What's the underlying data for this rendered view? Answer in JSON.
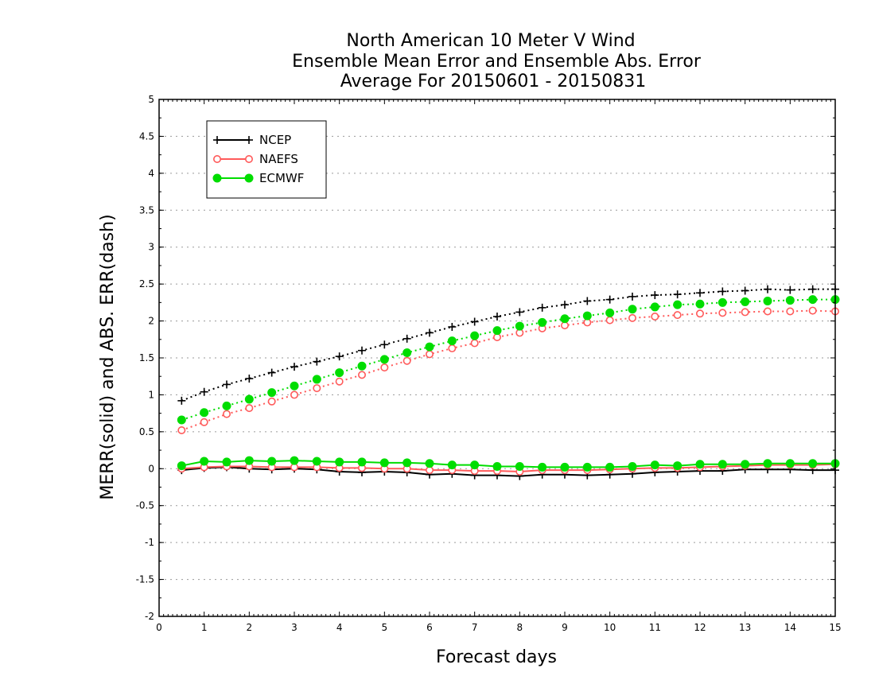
{
  "chart_data": {
    "type": "line",
    "title": [
      "North American 10 Meter V Wind",
      "Ensemble Mean Error and Ensemble Abs. Error",
      "Average For 20150601 - 20150831"
    ],
    "xlabel": "Forecast days",
    "ylabel": "MERR(solid) and ABS. ERR(dash)",
    "xlim": [
      0,
      15
    ],
    "ylim": [
      -2,
      5
    ],
    "x_ticks": [
      0,
      1,
      2,
      3,
      4,
      5,
      6,
      7,
      8,
      9,
      10,
      11,
      12,
      13,
      14,
      15
    ],
    "y_ticks": [
      -2,
      -1.5,
      -1,
      -0.5,
      0,
      0.5,
      1,
      1.5,
      2,
      2.5,
      3,
      3.5,
      4,
      4.5,
      5
    ],
    "y_tick_labels": [
      "-2",
      "-1.5",
      "-1",
      "-0.5",
      "0",
      "0.5",
      "1",
      "1.5",
      "2",
      "2.5",
      "3",
      "3.5",
      "4",
      "4.5",
      "5"
    ],
    "x_tick_labels": [
      "0",
      "1",
      "2",
      "3",
      "4",
      "5",
      "6",
      "7",
      "8",
      "9",
      "10",
      "11",
      "12",
      "13",
      "14",
      "15"
    ],
    "grid": "horizontal dotted",
    "legend_position": "top-left",
    "x": [
      0.5,
      1,
      1.5,
      2,
      2.5,
      3,
      3.5,
      4,
      4.5,
      5,
      5.5,
      6,
      6.5,
      7,
      7.5,
      8,
      8.5,
      9,
      9.5,
      10,
      10.5,
      11,
      11.5,
      12,
      12.5,
      13,
      13.5,
      14,
      14.5,
      15
    ],
    "series": [
      {
        "name": "NCEP",
        "color": "#000000",
        "marker": "plus",
        "merr": [
          -0.02,
          0.01,
          0.02,
          0.0,
          -0.01,
          0.0,
          -0.01,
          -0.04,
          -0.05,
          -0.04,
          -0.05,
          -0.08,
          -0.07,
          -0.09,
          -0.09,
          -0.1,
          -0.08,
          -0.08,
          -0.09,
          -0.08,
          -0.07,
          -0.05,
          -0.04,
          -0.03,
          -0.03,
          -0.01,
          -0.01,
          -0.01,
          -0.02,
          -0.02
        ],
        "abs_err": [
          0.92,
          1.04,
          1.14,
          1.22,
          1.3,
          1.38,
          1.45,
          1.52,
          1.6,
          1.68,
          1.76,
          1.84,
          1.92,
          1.99,
          2.06,
          2.12,
          2.18,
          2.22,
          2.27,
          2.29,
          2.33,
          2.35,
          2.36,
          2.38,
          2.4,
          2.41,
          2.43,
          2.42,
          2.43,
          2.43
        ]
      },
      {
        "name": "NAEFS",
        "color": "#ff5a5a",
        "marker": "open-circle",
        "merr": [
          0.0,
          0.02,
          0.03,
          0.03,
          0.02,
          0.02,
          0.02,
          0.01,
          0.01,
          0.0,
          0.0,
          -0.02,
          -0.02,
          -0.03,
          -0.03,
          -0.04,
          -0.02,
          -0.02,
          -0.02,
          -0.01,
          0.0,
          0.01,
          0.01,
          0.02,
          0.03,
          0.04,
          0.05,
          0.05,
          0.05,
          0.06
        ],
        "abs_err": [
          0.52,
          0.63,
          0.74,
          0.82,
          0.91,
          1.0,
          1.09,
          1.18,
          1.27,
          1.37,
          1.46,
          1.55,
          1.63,
          1.7,
          1.78,
          1.84,
          1.9,
          1.94,
          1.98,
          2.01,
          2.04,
          2.06,
          2.08,
          2.1,
          2.11,
          2.12,
          2.13,
          2.13,
          2.14,
          2.13
        ]
      },
      {
        "name": "ECMWF",
        "color": "#00dd00",
        "marker": "filled-circle",
        "merr": [
          0.04,
          0.1,
          0.09,
          0.11,
          0.1,
          0.11,
          0.1,
          0.09,
          0.09,
          0.08,
          0.08,
          0.07,
          0.05,
          0.05,
          0.03,
          0.03,
          0.02,
          0.02,
          0.02,
          0.02,
          0.03,
          0.05,
          0.04,
          0.06,
          0.06,
          0.06,
          0.07,
          0.07,
          0.07,
          0.07
        ],
        "abs_err": [
          0.66,
          0.76,
          0.85,
          0.94,
          1.03,
          1.12,
          1.21,
          1.3,
          1.39,
          1.48,
          1.57,
          1.65,
          1.73,
          1.8,
          1.87,
          1.93,
          1.98,
          2.03,
          2.07,
          2.11,
          2.16,
          2.19,
          2.22,
          2.23,
          2.25,
          2.26,
          2.27,
          2.28,
          2.29,
          2.29
        ]
      }
    ]
  }
}
